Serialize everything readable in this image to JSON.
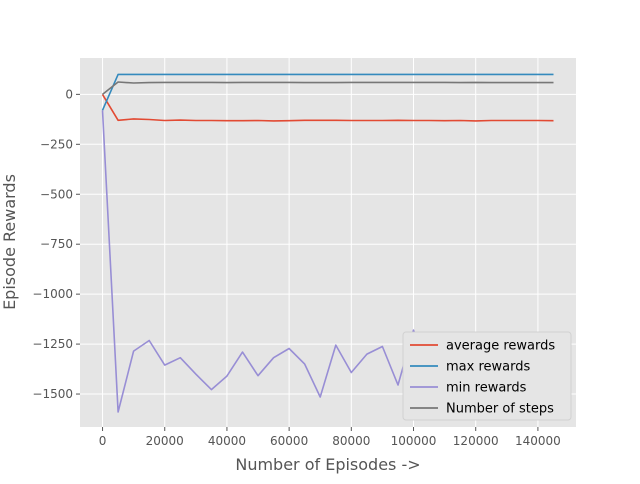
{
  "chart_data": {
    "type": "line",
    "title": "",
    "xlabel": "Number of Episodes ->",
    "ylabel": "Episode Rewards",
    "xlim": [
      -7250,
      152250
    ],
    "ylim": [
      -1665,
      182
    ],
    "xticks": [
      0,
      20000,
      40000,
      60000,
      80000,
      100000,
      120000,
      140000
    ],
    "xtick_labels": [
      "0",
      "20000",
      "40000",
      "60000",
      "80000",
      "100000",
      "120000",
      "140000"
    ],
    "yticks": [
      0,
      -250,
      -500,
      -750,
      -1000,
      -1250,
      -1500
    ],
    "ytick_labels": [
      "0",
      "−250",
      "−500",
      "−750",
      "−1000",
      "−1250",
      "−1500"
    ],
    "grid": true,
    "legend_position": "lower-right",
    "x": [
      0,
      5000,
      10000,
      15000,
      20000,
      25000,
      30000,
      35000,
      40000,
      45000,
      50000,
      55000,
      60000,
      65000,
      70000,
      75000,
      80000,
      85000,
      90000,
      95000,
      100000,
      105000,
      110000,
      115000,
      120000,
      125000,
      130000,
      135000,
      140000,
      145000
    ],
    "series": [
      {
        "name": "average rewards",
        "color": "#E24A33",
        "values": [
          0,
          -130,
          -123,
          -126,
          -131,
          -129,
          -131,
          -131,
          -132,
          -132,
          -131,
          -133,
          -132,
          -130,
          -130,
          -130,
          -131,
          -131,
          -131,
          -130,
          -131,
          -131,
          -132,
          -131,
          -133,
          -131,
          -131,
          -131,
          -131,
          -132
        ]
      },
      {
        "name": "max rewards",
        "color": "#348ABD",
        "values": [
          -80,
          100,
          100,
          100,
          100,
          100,
          100,
          100,
          100,
          100,
          100,
          100,
          100,
          100,
          100,
          100,
          100,
          100,
          100,
          100,
          100,
          100,
          100,
          100,
          100,
          100,
          100,
          100,
          100,
          100
        ]
      },
      {
        "name": "min rewards",
        "color": "#988ED5",
        "values": [
          -80,
          -1590,
          -1285,
          -1232,
          -1355,
          -1318,
          -1400,
          -1478,
          -1410,
          -1290,
          -1408,
          -1318,
          -1272,
          -1350,
          -1515,
          -1255,
          -1392,
          -1300,
          -1262,
          -1455,
          -1180,
          -1400,
          -1330,
          -1515,
          -1320,
          -1430,
          -1370,
          -1330,
          -1310,
          -1395
        ]
      },
      {
        "name": "Number of steps",
        "color": "#777777",
        "values": [
          0,
          62,
          57,
          59,
          60,
          60,
          60,
          60,
          59,
          60,
          60,
          60,
          60,
          59,
          59,
          59,
          60,
          60,
          60,
          60,
          60,
          60,
          60,
          59,
          60,
          59,
          59,
          59,
          59,
          59
        ]
      }
    ]
  }
}
